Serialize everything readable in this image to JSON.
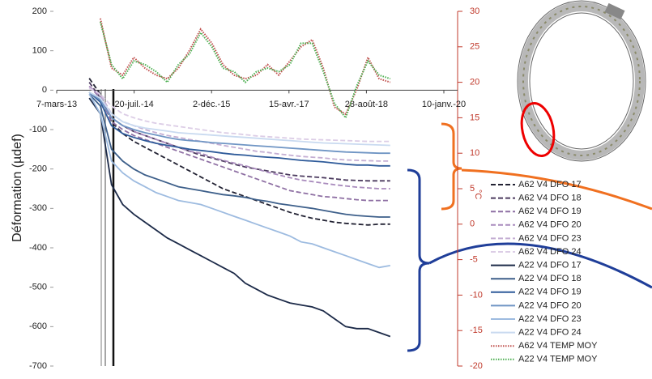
{
  "chart_data": {
    "type": "line",
    "y_label": "Déformation (µdef)",
    "y2_label": "°C",
    "xlim": [
      0,
      2500
    ],
    "xticks": [
      {
        "value": 0,
        "label": "7-mars-13"
      },
      {
        "value": 500,
        "label": "20-juil.-14"
      },
      {
        "value": 1000,
        "label": "2-déc.-15"
      },
      {
        "value": 1500,
        "label": "15-avr.-17"
      },
      {
        "value": 2000,
        "label": "28-août-18"
      },
      {
        "value": 2500,
        "label": "10-janv.-20"
      }
    ],
    "ylim": [
      -700,
      200
    ],
    "yticks": [
      200,
      100,
      0,
      -100,
      -200,
      -300,
      -400,
      -500,
      -600,
      -700
    ],
    "y2lim": [
      -20,
      30
    ],
    "y2ticks": [
      30,
      25,
      20,
      15,
      10,
      5,
      0,
      -5,
      -10,
      -15,
      -20
    ],
    "x": [
      210,
      282,
      354,
      426,
      498,
      570,
      642,
      714,
      786,
      858,
      930,
      1002,
      1074,
      1146,
      1218,
      1290,
      1362,
      1434,
      1506,
      1578,
      1650,
      1722,
      1794,
      1866,
      1938,
      2010,
      2082,
      2154
    ],
    "series": [
      {
        "name": "A62 V4 DFO 17",
        "color": "#222233",
        "style": "dashed",
        "values": [
          30,
          -10,
          -80,
          -110,
          -130,
          -145,
          -160,
          -175,
          -190,
          -205,
          -220,
          -235,
          -250,
          -260,
          -270,
          -280,
          -290,
          -300,
          -310,
          -318,
          -325,
          -330,
          -335,
          -338,
          -340,
          -342,
          -340,
          -340
        ]
      },
      {
        "name": "A62 V4 DFO 18",
        "color": "#4b3a5e",
        "style": "dashed",
        "values": [
          20,
          -20,
          -70,
          -90,
          -105,
          -115,
          -125,
          -135,
          -145,
          -155,
          -165,
          -172,
          -180,
          -188,
          -195,
          -200,
          -205,
          -210,
          -215,
          -218,
          -220,
          -222,
          -225,
          -228,
          -229,
          -230,
          -230,
          -230
        ]
      },
      {
        "name": "A62 V4 DFO 19",
        "color": "#8e6fa3",
        "style": "dashed",
        "values": [
          10,
          -20,
          -80,
          -100,
          -115,
          -125,
          -135,
          -145,
          -155,
          -165,
          -175,
          -185,
          -195,
          -205,
          -215,
          -225,
          -235,
          -245,
          -255,
          -260,
          -265,
          -270,
          -272,
          -275,
          -278,
          -280,
          -280,
          -280
        ]
      },
      {
        "name": "A62 V4 DFO 20",
        "color": "#a98bbd",
        "style": "dashed",
        "values": [
          10,
          -15,
          -70,
          -90,
          -105,
          -115,
          -125,
          -135,
          -145,
          -155,
          -160,
          -170,
          -178,
          -185,
          -192,
          -200,
          -208,
          -215,
          -222,
          -228,
          -232,
          -236,
          -240,
          -243,
          -246,
          -248,
          -250,
          -250
        ]
      },
      {
        "name": "A62 V4 DFO 23",
        "color": "#c4aed3",
        "style": "dashed",
        "values": [
          5,
          -10,
          -60,
          -80,
          -90,
          -100,
          -108,
          -115,
          -120,
          -125,
          -130,
          -135,
          -140,
          -145,
          -150,
          -155,
          -158,
          -162,
          -165,
          -168,
          -170,
          -172,
          -175,
          -177,
          -178,
          -179,
          -180,
          -180
        ]
      },
      {
        "name": "A62 V4 DFO 24",
        "color": "#dccde6",
        "style": "dashed",
        "values": [
          5,
          -10,
          -40,
          -60,
          -70,
          -78,
          -84,
          -88,
          -92,
          -96,
          -100,
          -104,
          -108,
          -110,
          -113,
          -116,
          -118,
          -120,
          -122,
          -124,
          -125,
          -126,
          -127,
          -128,
          -129,
          -130,
          -130,
          -130
        ]
      },
      {
        "name": "A22 V4 DFO 17",
        "color": "#1c2a48",
        "style": "solid",
        "values": [
          -20,
          -60,
          -240,
          -290,
          -315,
          -335,
          -355,
          -375,
          -390,
          -405,
          -420,
          -435,
          -450,
          -465,
          -490,
          -505,
          -520,
          -530,
          -540,
          -545,
          -550,
          -560,
          -580,
          -600,
          -605,
          -605,
          -615,
          -625
        ]
      },
      {
        "name": "A22 V4 DFO 18",
        "color": "#3d5f8a",
        "style": "solid",
        "values": [
          -10,
          -40,
          -150,
          -180,
          -200,
          -215,
          -225,
          -235,
          -245,
          -250,
          -255,
          -260,
          -265,
          -268,
          -272,
          -278,
          -282,
          -288,
          -292,
          -296,
          -300,
          -305,
          -310,
          -315,
          -318,
          -320,
          -322,
          -322
        ]
      },
      {
        "name": "A22 V4 DFO 19",
        "color": "#2f5b9a",
        "style": "solid",
        "values": [
          -5,
          -30,
          -90,
          -110,
          -120,
          -128,
          -135,
          -140,
          -145,
          -150,
          -153,
          -156,
          -160,
          -163,
          -165,
          -168,
          -170,
          -172,
          -175,
          -178,
          -180,
          -182,
          -185,
          -188,
          -190,
          -190,
          -192,
          -192
        ]
      },
      {
        "name": "A22 V4 DFO 20",
        "color": "#6f95c4",
        "style": "solid",
        "values": [
          -5,
          -25,
          -70,
          -90,
          -100,
          -108,
          -114,
          -120,
          -125,
          -128,
          -130,
          -133,
          -135,
          -137,
          -139,
          -141,
          -143,
          -145,
          -147,
          -149,
          -151,
          -153,
          -155,
          -157,
          -158,
          -159,
          -160,
          -160
        ]
      },
      {
        "name": "A22 V4 DFO 23",
        "color": "#9dbbe0",
        "style": "solid",
        "values": [
          -10,
          -60,
          -180,
          -210,
          -230,
          -245,
          -260,
          -270,
          -280,
          -285,
          -290,
          -300,
          -310,
          -320,
          -330,
          -340,
          -350,
          -360,
          -370,
          -385,
          -390,
          -400,
          -410,
          -420,
          -430,
          -440,
          -450,
          -445
        ]
      },
      {
        "name": "A22 V4 DFO 24",
        "color": "#c9daf0",
        "style": "solid",
        "values": [
          -5,
          -20,
          -60,
          -80,
          -90,
          -96,
          -100,
          -104,
          -108,
          -110,
          -112,
          -114,
          -116,
          -118,
          -120,
          -122,
          -124,
          -126,
          -128,
          -130,
          -132,
          -134,
          -135,
          -136,
          -137,
          -138,
          -139,
          -140
        ]
      },
      {
        "name": "A62 V4 TEMP MOY",
        "color": "#c0504d",
        "style": "dotted",
        "axis": "y2",
        "values": [
          null,
          29,
          22,
          21,
          23.5,
          22,
          21,
          20.5,
          22,
          24.5,
          27.5,
          25.5,
          22.5,
          21,
          20.5,
          21,
          22.5,
          21,
          23,
          25,
          26,
          22,
          16.5,
          15.5,
          19,
          23.5,
          20.5,
          20
        ]
      },
      {
        "name": "A22 V4 TEMP MOY",
        "color": "#4caf50",
        "style": "dotted",
        "axis": "y2",
        "values": [
          null,
          28.5,
          22.5,
          20.5,
          23,
          22.5,
          21.5,
          20,
          22.5,
          24,
          27,
          25,
          22,
          21.5,
          20,
          21.5,
          22,
          21.5,
          22.5,
          25.5,
          25.5,
          21.5,
          17,
          15,
          19.5,
          23,
          21,
          20.5
        ]
      }
    ]
  }
}
